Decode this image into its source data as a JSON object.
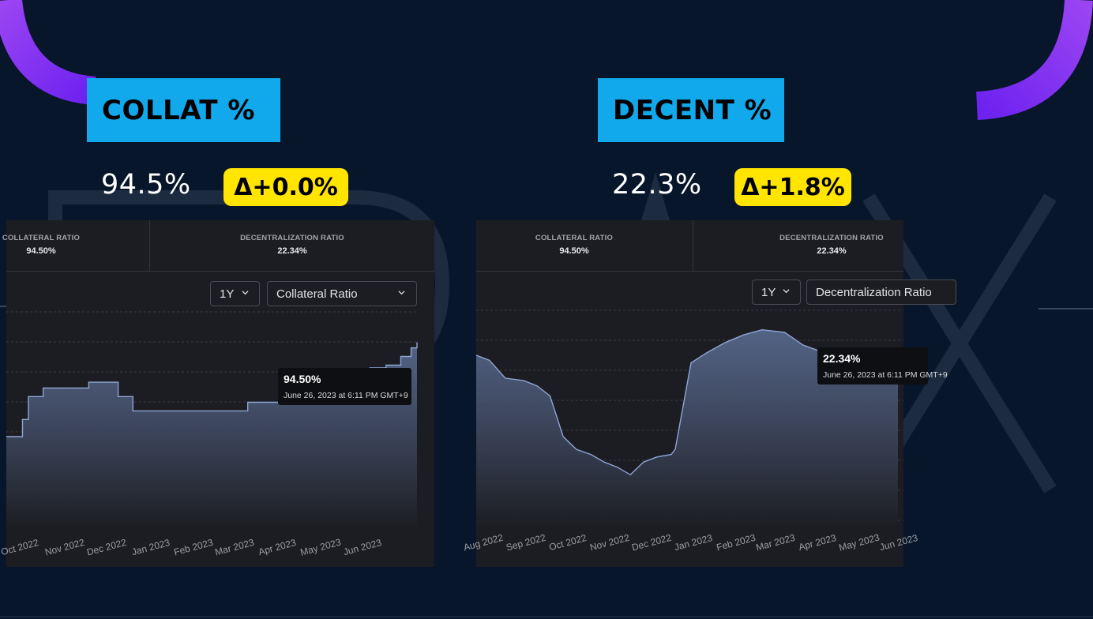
{
  "slides": {
    "collat": {
      "label": "COLLAT %",
      "value": "94.5%",
      "delta": "Δ+0.0%"
    },
    "decent": {
      "label": "DECENT %",
      "value": "22.3%",
      "delta": "Δ+1.8%"
    }
  },
  "colors": {
    "background": "#07162a",
    "label_bg": "#12a8ec",
    "delta_bg": "#ffe500",
    "arc": "#7b2ff7",
    "line": "#8fa6d6",
    "card_bg": "#1c1d22"
  },
  "cards": {
    "left": {
      "header": [
        {
          "label": "COLLATERAL RATIO",
          "value": "94.50%"
        },
        {
          "label": "DECENTRALIZATION RATIO",
          "value": "22.34%"
        }
      ],
      "period": "1Y",
      "metric_select": "Collateral Ratio",
      "tooltip": {
        "value": "94.50%",
        "date": "June 26, 2023 at 6:11 PM GMT+9"
      }
    },
    "right": {
      "header": [
        {
          "label": "COLLATERAL RATIO",
          "value": "94.50%"
        },
        {
          "label": "DECENTRALIZATION RATIO",
          "value": "22.34%"
        }
      ],
      "period": "1Y",
      "metric_select": "Decentralization Ratio",
      "tooltip": {
        "value": "22.34%",
        "date": "June 26, 2023 at 6:11 PM GMT+9"
      }
    }
  },
  "chart_data": [
    {
      "type": "area",
      "title": "",
      "x_ticks": [
        "Oct 2022",
        "Nov 2022",
        "Dec 2022",
        "Jan 2023",
        "Feb 2023",
        "Mar 2023",
        "Apr 2023",
        "May 2023",
        "Jun 2023"
      ],
      "x": [
        "2022-09-20",
        "2022-10-01",
        "2022-10-05",
        "2022-10-15",
        "2022-11-01",
        "2022-11-15",
        "2022-12-01",
        "2022-12-05",
        "2022-12-15",
        "2023-01-01",
        "2023-01-15",
        "2023-02-01",
        "2023-02-15",
        "2023-03-01",
        "2023-03-03",
        "2023-03-15",
        "2023-04-01",
        "2023-04-10",
        "2023-04-15",
        "2023-04-25",
        "2023-05-05",
        "2023-05-15",
        "2023-05-25",
        "2023-06-05",
        "2023-06-15",
        "2023-06-22",
        "2023-06-26"
      ],
      "series": [
        {
          "values": [
            91.2,
            91.8,
            92.6,
            92.9,
            92.9,
            93.1,
            93.1,
            92.6,
            92.1,
            92.1,
            92.1,
            92.1,
            92.1,
            92.1,
            92.4,
            92.4,
            92.4,
            92.6,
            92.9,
            93.1,
            93.3,
            93.5,
            93.6,
            93.7,
            94.0,
            94.3,
            94.5
          ]
        }
      ]
    },
    {
      "type": "area",
      "title": "",
      "x_ticks": [
        "Aug 2022",
        "Sep 2022",
        "Oct 2022",
        "Nov 2022",
        "Dec 2022",
        "Jan 2023",
        "Feb 2023",
        "Mar 2023",
        "Apr 2023",
        "May 2023",
        "Jun 2023"
      ],
      "x": [
        "2022-08-10",
        "2022-08-20",
        "2022-09-01",
        "2022-09-15",
        "2022-09-25",
        "2022-10-05",
        "2022-10-15",
        "2022-10-25",
        "2022-11-05",
        "2022-11-15",
        "2022-11-25",
        "2022-12-05",
        "2022-12-15",
        "2022-12-25",
        "2023-01-05",
        "2023-01-08",
        "2023-01-20",
        "2023-02-01",
        "2023-02-15",
        "2023-03-01",
        "2023-03-15",
        "2023-04-01",
        "2023-04-15",
        "2023-05-01",
        "2023-05-15",
        "2023-06-01",
        "2023-06-15",
        "2023-06-26"
      ],
      "series": [
        {
          "values": [
            22.8,
            22.6,
            21.9,
            21.8,
            21.6,
            21.2,
            19.6,
            19.1,
            18.9,
            18.6,
            18.4,
            18.1,
            18.6,
            18.8,
            18.9,
            19.1,
            22.5,
            22.9,
            23.3,
            23.6,
            23.8,
            23.7,
            23.2,
            22.9,
            22.6,
            22.4,
            22.2,
            22.3
          ]
        }
      ]
    }
  ]
}
